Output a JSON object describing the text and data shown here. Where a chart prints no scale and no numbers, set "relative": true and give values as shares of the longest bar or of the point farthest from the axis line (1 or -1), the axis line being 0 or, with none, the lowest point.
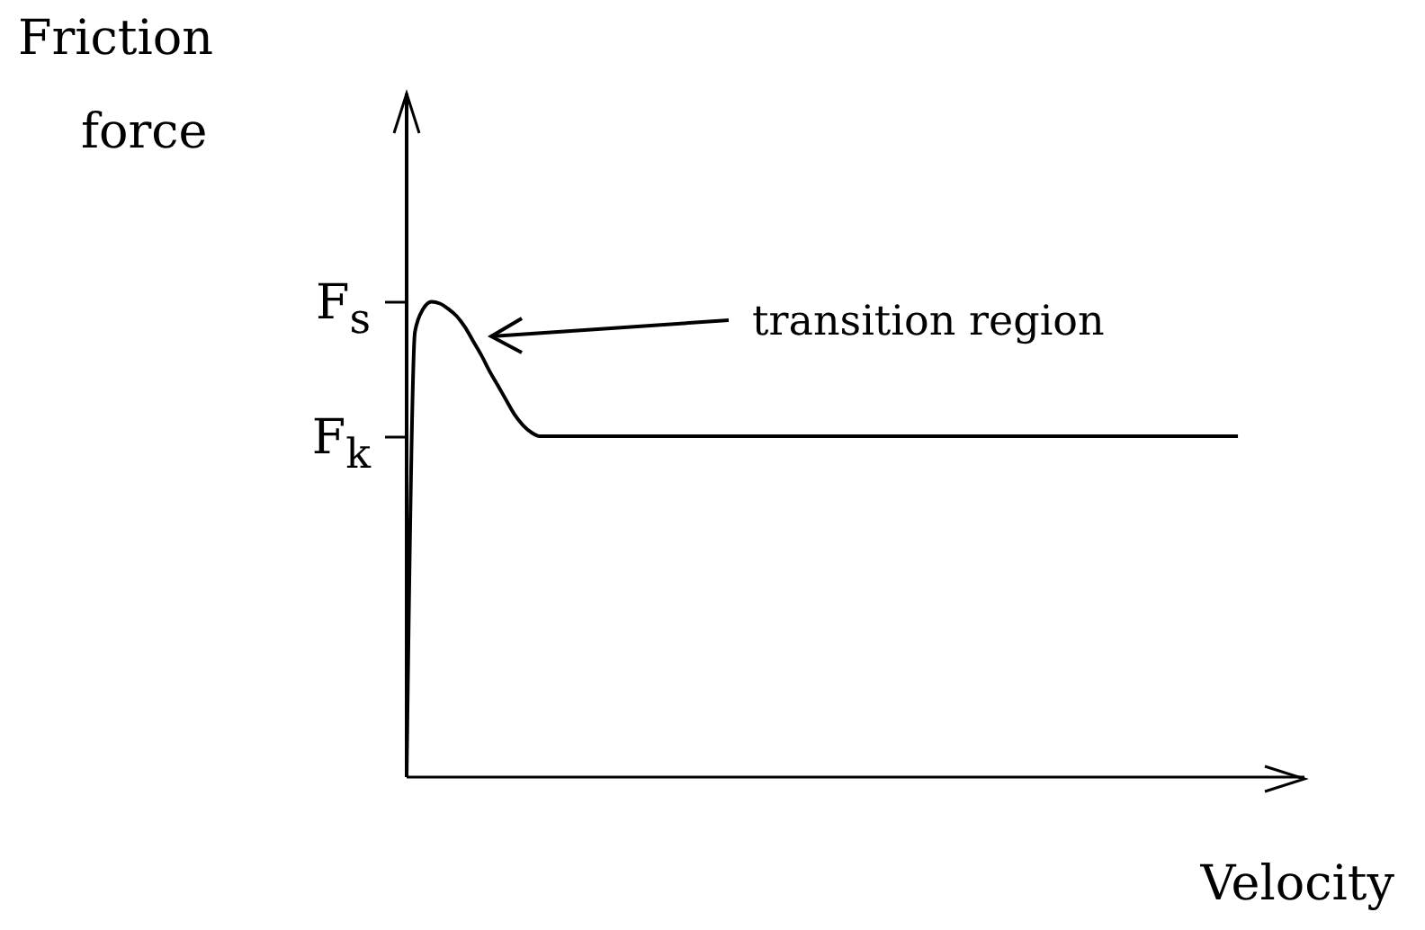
{
  "chart_data": {
    "type": "line",
    "xlabel": "Velocity",
    "ylabel": "Friction\nforce",
    "relative": true,
    "color": "#000000",
    "marker": "none",
    "line_style": "solid",
    "annotations": [
      "transition region",
      "F$_{s}$",
      "F$_{k}$"
    ],
    "categories": [
      null,
      null,
      null,
      null,
      null,
      null,
      null,
      null,
      null,
      null,
      null,
      null,
      null,
      null,
      null,
      null,
      null,
      null,
      null,
      null,
      null,
      null,
      null,
      null,
      null,
      null,
      null,
      null,
      null,
      null,
      null,
      null,
      null,
      null,
      null,
      null,
      null,
      null,
      null,
      null,
      null,
      null,
      null,
      null,
      null,
      null,
      null,
      null,
      null,
      null,
      null,
      null,
      null,
      null,
      null,
      null,
      null,
      null,
      null,
      null,
      null,
      null,
      null,
      null,
      null,
      null,
      null,
      null,
      null,
      null,
      null,
      null,
      null,
      null,
      null,
      null,
      null,
      null,
      null,
      null,
      null,
      null,
      null,
      null,
      null,
      null,
      null,
      null,
      null,
      null,
      null,
      null,
      null,
      null,
      null,
      null,
      null,
      null,
      null,
      null,
      null,
      null,
      null,
      null,
      null,
      null,
      null,
      null,
      null
    ],
    "values": [
      0,
      0.936,
      0.985,
      1,
      0.996,
      0.985,
      0.97,
      0.947,
      0.917,
      0.887,
      0.853,
      0.823,
      0.792,
      0.762,
      0.74,
      0.725,
      0.717,
      0.717,
      0.717,
      0.717,
      0.717,
      0.717,
      0.717,
      0.717,
      0.717,
      0.717,
      0.717,
      0.717,
      0.717,
      0.717,
      0.717,
      0.717,
      0.717,
      0.717,
      0.717,
      0.717,
      0.717,
      0.717,
      0.717,
      0.717,
      0.717,
      0.717,
      0.717,
      0.717,
      0.717,
      0.717,
      0.717,
      0.717,
      0.717,
      0.717,
      0.717,
      0.717,
      0.717,
      0.717,
      0.717,
      0.717,
      0.717,
      0.717,
      0.717,
      0.717,
      0.717,
      0.717,
      0.717,
      0.717,
      0.717,
      0.717,
      0.717,
      0.717,
      0.717,
      0.717,
      0.717,
      0.717,
      0.717,
      0.717,
      0.717,
      0.717,
      0.717,
      0.717,
      0.717,
      0.717,
      0.717,
      0.717,
      0.717,
      0.717,
      0.717,
      0.717,
      0.717,
      0.717,
      0.717,
      0.717,
      0.717,
      0.717,
      0.717,
      0.717,
      0.717,
      0.717,
      0.717,
      0.717,
      0.717,
      0.717,
      0.717,
      null,
      null,
      null,
      null,
      null,
      null,
      null,
      null
    ]
  }
}
